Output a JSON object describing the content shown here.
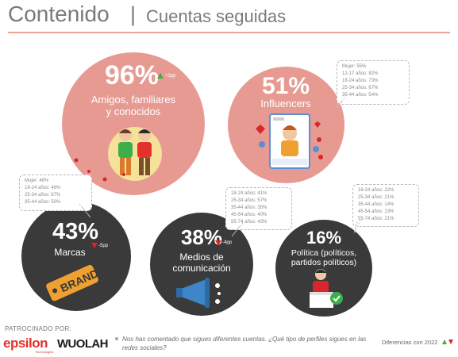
{
  "header": {
    "title": "Contenido",
    "separator": "|",
    "subtitle": "Cuentas seguidas"
  },
  "chart_data": {
    "type": "bubble",
    "categories": [
      {
        "name": "Amigos, familiares y conocidos",
        "value_label": "96%",
        "value": 96,
        "change": "+3pp",
        "direction": "up",
        "breakdown": []
      },
      {
        "name": "Influencers",
        "value_label": "51%",
        "value": 51,
        "change": "",
        "direction": "",
        "breakdown": [
          "Mujer: 55%",
          "12-17 años: 82%",
          "18-24 años: 73%",
          "25-34 años: 67%",
          "35-44 años: 54%"
        ]
      },
      {
        "name": "Marcas",
        "value_label": "43%",
        "value": 43,
        "change": "-5pp",
        "direction": "down",
        "breakdown": [
          "Mujer: 48%",
          "18-24 años: 46%",
          "25-34 años: 67%",
          "35-44 años: 50%"
        ]
      },
      {
        "name": "Medios de comunicación",
        "value_label": "38%",
        "value": 38,
        "change": "-4pp",
        "direction": "down",
        "breakdown": [
          "18-24 años: 41%",
          "25-34 años: 57%",
          "35-44 años: 35%",
          "45-54 años: 40%",
          "55-74 años: 43%"
        ]
      },
      {
        "name": "Política (políticos, partidos políticos)",
        "value_label": "16%",
        "value": 16,
        "change": "",
        "direction": "",
        "breakdown": [
          "18-24 años: 22%",
          "25-34 años: 21%",
          "35-44 años: 14%",
          "45-54 años: 13%",
          "55-74 años: 21%"
        ]
      }
    ],
    "labels": {
      "amigos_line1": "Amigos, familiares",
      "amigos_line2": "y conocidos",
      "medios_line1": "Medios de",
      "medios_line2": "comunicación",
      "politica_line1": "Política (políticos,",
      "politica_line2": "partidos políticos)"
    }
  },
  "illustrations": {
    "brand_tag": "BRAND"
  },
  "footer": {
    "sponsor_label": "PATROCINADO POR:",
    "sponsor1": "epsilon",
    "sponsor1_sub": "Technologies",
    "sponsor2": "WUOLAH",
    "question": "Nos has comentado que sigues diferentes cuentas. ¿Qué tipo de perfiles sigues en las redes sociales?",
    "diff_label": "Diferencias con 2022"
  },
  "colors": {
    "pink": "#e79a92",
    "dark": "#3a3a3a",
    "up": "#3cae4a",
    "down": "#d9262b",
    "accent_line": "#e9a39b"
  }
}
